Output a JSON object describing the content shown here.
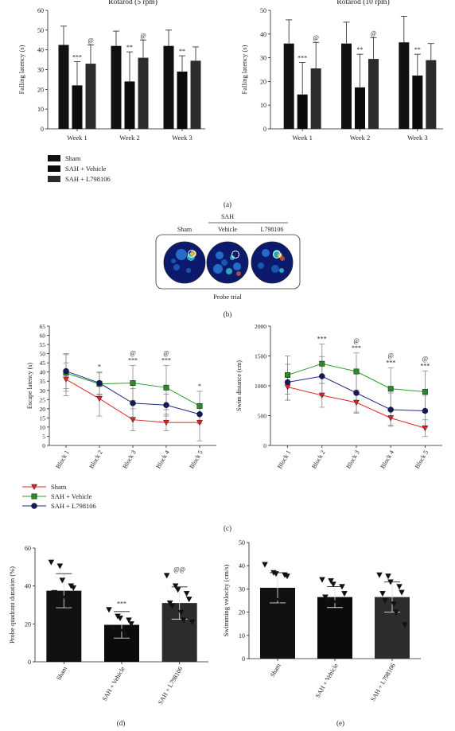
{
  "chart_data": [
    {
      "type": "bar",
      "title": "Rotarod (5 rpm)",
      "ylabel": "Falling latency (s)",
      "ylim": [
        0,
        60
      ],
      "yticks": [
        0,
        10,
        20,
        30,
        40,
        50,
        60
      ],
      "categories": [
        "Week 1",
        "Week 2",
        "Week 3"
      ],
      "series": [
        {
          "name": "Sham",
          "values": [
            42.5,
            42,
            42
          ],
          "error": [
            9.5,
            7.5,
            8
          ]
        },
        {
          "name": "SAH + Vehicle",
          "values": [
            22,
            24,
            29
          ],
          "error": [
            12,
            15,
            8
          ]
        },
        {
          "name": "SAH + L798106",
          "values": [
            33,
            36,
            34.5
          ],
          "error": [
            9.5,
            9,
            7
          ]
        }
      ],
      "annotations": [
        [
          "***",
          "@"
        ],
        [
          "**",
          "@"
        ],
        [
          "**",
          ""
        ]
      ]
    },
    {
      "type": "bar",
      "title": "Rotarod (10 rpm)",
      "ylabel": "Falling latency (s)",
      "ylim": [
        0,
        50
      ],
      "yticks": [
        0,
        10,
        20,
        30,
        40,
        50
      ],
      "categories": [
        "Week 1",
        "Week 2",
        "Week 3"
      ],
      "series": [
        {
          "name": "Sham",
          "values": [
            36,
            36,
            36.5
          ],
          "error": [
            10,
            9,
            11
          ]
        },
        {
          "name": "SAH + Vehicle",
          "values": [
            14.5,
            17.5,
            22.5
          ],
          "error": [
            13.5,
            14,
            9
          ]
        },
        {
          "name": "SAH + L798106",
          "values": [
            25.5,
            29.5,
            29
          ],
          "error": [
            11,
            9,
            7
          ]
        }
      ],
      "annotations": [
        [
          "***",
          "@"
        ],
        [
          "**",
          "@"
        ],
        [
          "**",
          ""
        ]
      ]
    },
    {
      "type": "line",
      "ylabel": "Escape latency (s)",
      "ylim": [
        0,
        65
      ],
      "yticks": [
        0,
        5,
        10,
        15,
        20,
        25,
        30,
        35,
        40,
        45,
        50,
        55,
        60,
        65
      ],
      "categories": [
        "Block 1",
        "Block 2",
        "Block 3",
        "Block 4",
        "Block 5"
      ],
      "series": [
        {
          "name": "Sham",
          "values": [
            36,
            25.5,
            14,
            12.5,
            12.5
          ],
          "error": [
            9,
            9.5,
            6,
            4.5,
            10
          ]
        },
        {
          "name": "SAH + Vehicle",
          "values": [
            39.5,
            33.5,
            34,
            31.5,
            21.5
          ],
          "error": [
            10,
            6,
            9.5,
            12,
            8
          ]
        },
        {
          "name": "SAH + L798106",
          "values": [
            40.5,
            34,
            23,
            22,
            17
          ],
          "error": [
            9.5,
            6,
            8,
            6,
            5
          ]
        }
      ],
      "annotations": [
        [
          ""
        ],
        [
          "*"
        ],
        [
          "@",
          "***"
        ],
        [
          "@",
          "***"
        ],
        [
          "*"
        ]
      ]
    },
    {
      "type": "line",
      "ylabel": "Swim distance (cm)",
      "ylim": [
        0,
        2000
      ],
      "yticks": [
        0,
        500,
        1000,
        1500,
        2000
      ],
      "categories": [
        "Block 1",
        "Block 2",
        "Block 3",
        "Block 4",
        "Block 5"
      ],
      "series": [
        {
          "name": "Sham",
          "values": [
            980,
            840,
            720,
            460,
            290
          ],
          "error": [
            220,
            200,
            180,
            120,
            140
          ]
        },
        {
          "name": "SAH + Vehicle",
          "values": [
            1180,
            1370,
            1240,
            950,
            900
          ],
          "error": [
            320,
            330,
            310,
            350,
            350
          ]
        },
        {
          "name": "SAH + L798106",
          "values": [
            1060,
            1160,
            880,
            600,
            580
          ],
          "error": [
            300,
            330,
            320,
            280,
            260
          ]
        }
      ],
      "annotations": [
        [
          ""
        ],
        [
          "***"
        ],
        [
          "@",
          "***"
        ],
        [
          "@",
          "***"
        ],
        [
          "@",
          "***"
        ]
      ]
    },
    {
      "type": "bar",
      "ylabel": "Probe quadrant duration (%)",
      "ylim": [
        0,
        60
      ],
      "yticks": [
        0,
        20,
        40,
        60
      ],
      "categories": [
        "Sham",
        "SAH + Vehicle",
        "SAH + L798106"
      ],
      "values": [
        37.5,
        19.5,
        31
      ],
      "error": [
        9,
        7,
        8.5
      ],
      "points": [
        [
          52.5,
          50.5,
          43,
          40,
          39,
          36.5,
          35,
          33.5,
          30,
          27
        ],
        [
          27.5,
          24,
          23,
          22,
          20,
          17.5,
          16.5,
          16,
          14
        ],
        [
          45.5,
          40,
          38,
          36,
          33,
          31,
          29.5,
          26,
          22,
          21
        ]
      ],
      "annotations": [
        "",
        "***",
        "@@"
      ]
    },
    {
      "type": "bar",
      "ylabel": "Swimming velocity (cm/s)",
      "ylim": [
        0,
        50
      ],
      "yticks": [
        0,
        10,
        20,
        30,
        40,
        50
      ],
      "categories": [
        "Sham",
        "SAH + Vehicle",
        "SAH + L798106"
      ],
      "values": [
        30.5,
        26.5,
        26.5
      ],
      "error": [
        6.5,
        4.5,
        6.5
      ],
      "points": [
        [
          40.5,
          37,
          36.5,
          36,
          35.5,
          29,
          28,
          25,
          22
        ],
        [
          34,
          33.5,
          32,
          31,
          28,
          26.5,
          25,
          24
        ],
        [
          36,
          35.5,
          33,
          31,
          28.5,
          28,
          25,
          23.5,
          20,
          14.5
        ]
      ],
      "annotations": [
        "",
        "",
        ""
      ]
    }
  ],
  "legend_a": [
    "Sham",
    "SAH + Vehicle",
    "SAH + L798106"
  ],
  "legend_c": [
    "Sham",
    "SAH + Vehicle",
    "SAH + L798106"
  ],
  "probe": {
    "group": "SAH",
    "labels": [
      "Sham",
      "Vehicle",
      "L798106"
    ],
    "caption": "Probe trial"
  },
  "panel_labels": [
    "(a)",
    "(b)",
    "(c)",
    "(d)",
    "(e)"
  ],
  "colors": {
    "sham_bar": "#111111",
    "vehicle_bar": "#0b0b0b",
    "l798106_bar": "#2c2c2c",
    "sham_line": "#e02424",
    "vehicle_line": "#2aa02a",
    "l798106_line": "#1f2a8c",
    "heatmap_bg": "#0c1a6e"
  }
}
